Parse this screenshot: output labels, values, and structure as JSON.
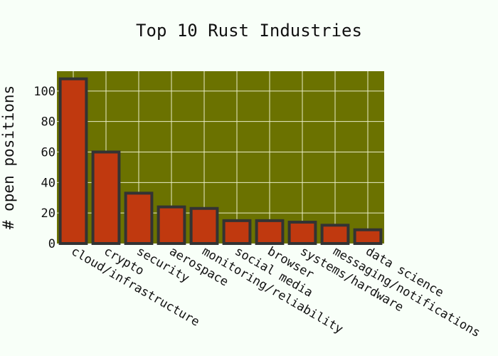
{
  "chart_data": {
    "type": "bar",
    "title": "Top 10 Rust Industries",
    "xlabel": "",
    "ylabel": "# open positions",
    "categories": [
      "cloud/infrastructure",
      "crypto",
      "security",
      "aerospace",
      "monitoring/reliability",
      "social media",
      "browser",
      "systems/hardware",
      "messaging/notifications",
      "data science"
    ],
    "values": [
      108,
      60,
      33,
      24,
      23,
      15,
      15,
      14,
      12,
      9
    ],
    "ylim": [
      0,
      113
    ],
    "yticks": [
      0,
      20,
      40,
      60,
      80,
      100
    ],
    "grid": true,
    "legend": "none",
    "colors": {
      "page_background": "#f8fff8",
      "plot_background": "#6b7200",
      "bar_fill": "#c0390f",
      "bar_outline": "#333333",
      "grid": "#e8ecc8"
    }
  }
}
